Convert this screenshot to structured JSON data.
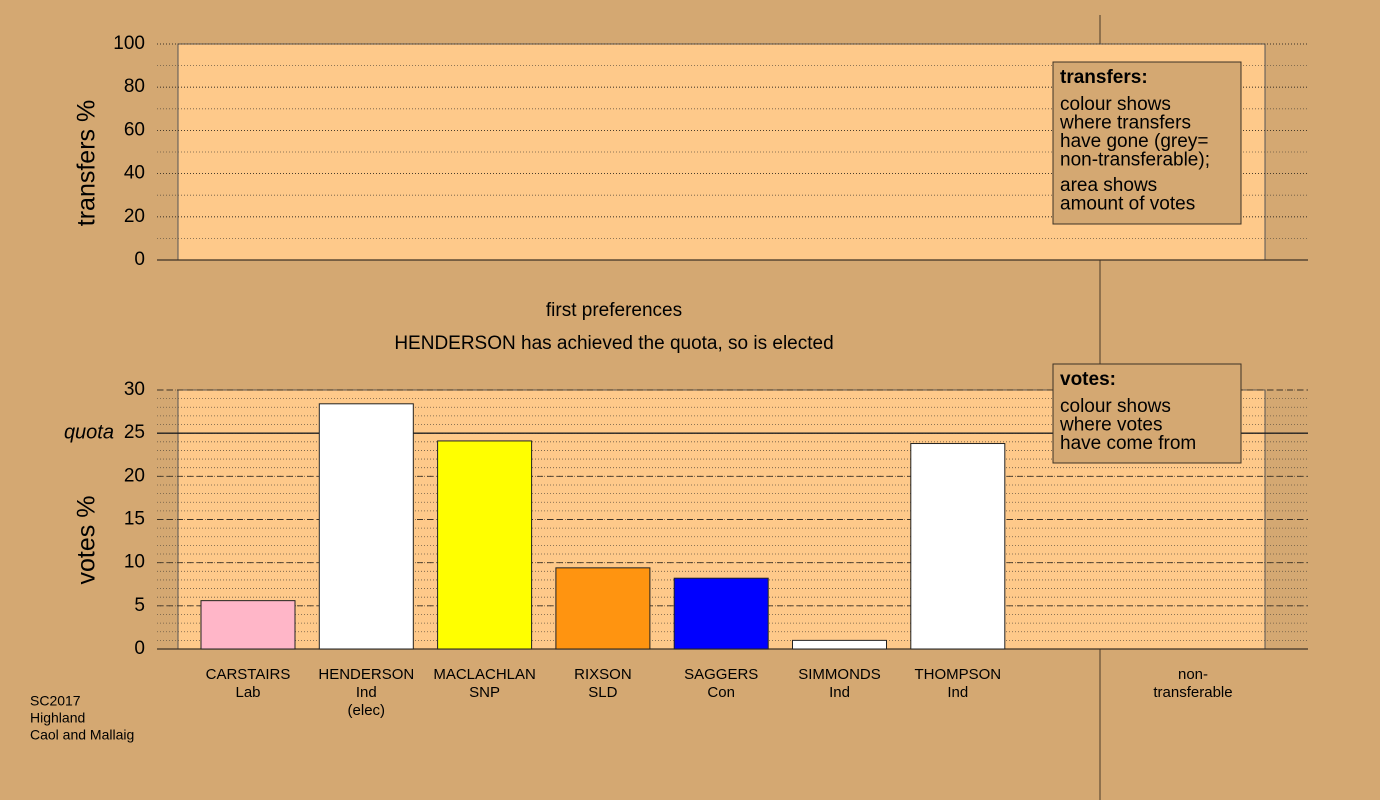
{
  "chart_data": [
    {
      "type": "bar",
      "ylabel": "transfers %",
      "ylim": [
        0,
        100
      ],
      "yticks": [
        0,
        20,
        40,
        60,
        80,
        100
      ],
      "grid": true,
      "categories": [],
      "values": [],
      "legend": {
        "title": "transfers:",
        "paragraphs": [
          [
            "colour shows",
            "where transfers",
            "have gone (grey=",
            "non-transferable);"
          ],
          [
            "area shows",
            "amount of votes"
          ]
        ]
      }
    },
    {
      "type": "bar",
      "title": "first preferences",
      "subtitle": "HENDERSON has achieved the quota, so is elected",
      "ylabel": "votes %",
      "ylim": [
        0,
        30
      ],
      "yticks": [
        0,
        5,
        10,
        15,
        20,
        25,
        30
      ],
      "grid": true,
      "quota": {
        "value": 25,
        "label": "quota"
      },
      "categories": [
        [
          "CARSTAIRS",
          "Lab"
        ],
        [
          "HENDERSON",
          "Ind",
          "(elec)"
        ],
        [
          "MACLACHLAN",
          "SNP"
        ],
        [
          "RIXSON",
          "SLD"
        ],
        [
          "SAGGERS",
          "Con"
        ],
        [
          "SIMMONDS",
          "Ind"
        ],
        [
          "THOMPSON",
          "Ind"
        ],
        [
          "non-",
          "transferable"
        ]
      ],
      "values": [
        5.6,
        28.4,
        24.1,
        9.4,
        8.2,
        1.0,
        23.8,
        null
      ],
      "colors": [
        "#ffb6c8",
        "#ffffff",
        "#ffff00",
        "#ff9410",
        "#0000ff",
        "#ffffff",
        "#ffffff",
        null
      ],
      "legend": {
        "title": "votes:",
        "paragraphs": [
          [
            "colour shows",
            "where votes",
            "have come from"
          ]
        ]
      }
    }
  ],
  "footnote": [
    "SC2017",
    "Highland",
    "Caol and Mallaig"
  ]
}
